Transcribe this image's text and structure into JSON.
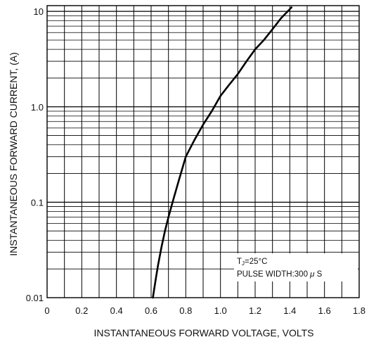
{
  "chart_data": {
    "type": "line",
    "xlabel": "INSTANTANEOUS FORWARD VOLTAGE, VOLTS",
    "ylabel": "INSTANTANEOUS FORWARD CURRENT, (A)",
    "xlim": [
      0,
      1.8
    ],
    "ylim": [
      0.01,
      10
    ],
    "y_scale": "log",
    "grid": true,
    "x_ticks": [
      "0",
      "0.2",
      "0.4",
      "0.6",
      "0.8",
      "1.0",
      "1.2",
      "1.4",
      "1.6",
      "1.8"
    ],
    "y_ticks": [
      "0.01",
      "0.1",
      "1.0",
      "10"
    ],
    "annotation": {
      "line1_main": "T",
      "line1_sub": "J",
      "line1_rest": "=25°C",
      "line2_main": "PULSE WIDTH:300 ",
      "line2_mu": "μ",
      "line2_end": " S"
    },
    "series": [
      {
        "x": [
          0.61,
          0.62,
          0.63,
          0.64,
          0.66,
          0.68,
          0.7,
          0.73,
          0.76,
          0.8,
          0.85,
          0.9,
          0.95,
          1.0,
          1.05,
          1.1,
          1.15,
          1.2,
          1.25,
          1.3,
          1.35,
          1.41
        ],
        "y": [
          0.01,
          0.013,
          0.017,
          0.022,
          0.034,
          0.05,
          0.07,
          0.11,
          0.17,
          0.3,
          0.45,
          0.65,
          0.9,
          1.3,
          1.7,
          2.2,
          3.0,
          4.0,
          5.0,
          6.5,
          8.5,
          11.0
        ]
      }
    ]
  }
}
